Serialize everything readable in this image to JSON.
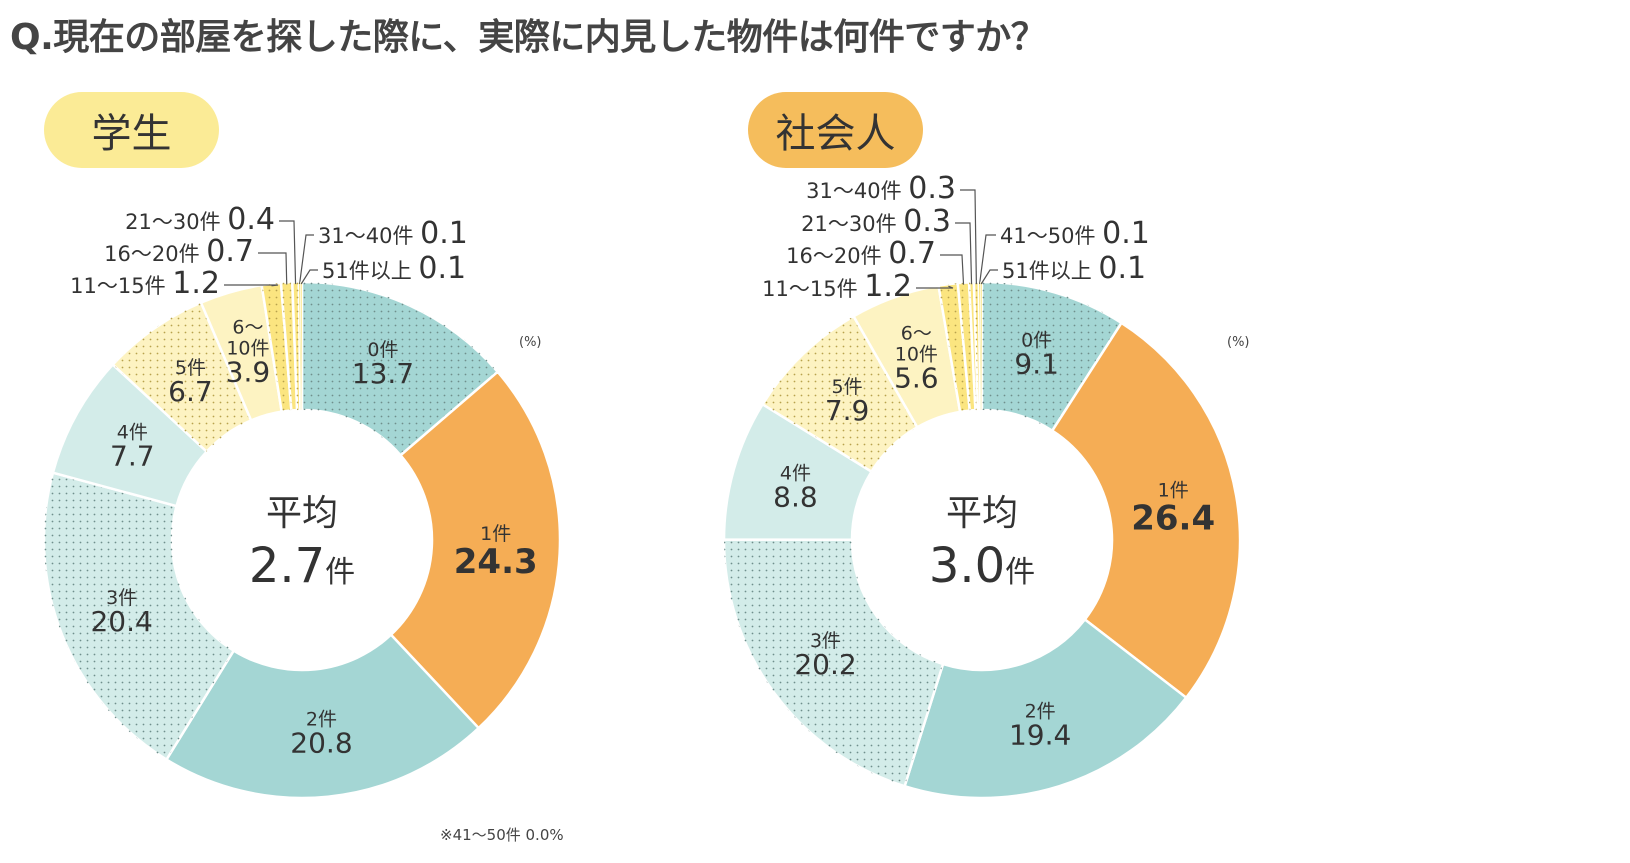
{
  "title": "Q.現在の部屋を探した際に、実際に内見した物件は何件ですか？",
  "colors": {
    "teal": "#a4d6d4",
    "orange": "#f5ad55",
    "light_teal": "#d3ece9",
    "pale_yellow": "#fdf3c2",
    "yellow": "#fbe580",
    "text": "#333333"
  },
  "chart_data": [
    {
      "type": "pie",
      "label": "学生",
      "center_label": "平均",
      "average_value": "2.7",
      "average_unit": "件",
      "unit_note": "(%)",
      "footnote": "※41〜50件 0.0%",
      "categories": [
        "0件",
        "1件",
        "2件",
        "3件",
        "4件",
        "5件",
        "6〜10件",
        "11〜15件",
        "16〜20件",
        "21〜30件",
        "31〜40件",
        "51件以上"
      ],
      "values": [
        13.7,
        24.3,
        20.8,
        20.4,
        7.7,
        6.7,
        3.9,
        1.2,
        0.7,
        0.4,
        0.1,
        0.1
      ]
    },
    {
      "type": "pie",
      "label": "社会人",
      "center_label": "平均",
      "average_value": "3.0",
      "average_unit": "件",
      "unit_note": "(%)",
      "categories": [
        "0件",
        "1件",
        "2件",
        "3件",
        "4件",
        "5件",
        "6〜10件",
        "11〜15件",
        "16〜20件",
        "21〜30件",
        "31〜40件",
        "41〜50件",
        "51件以上"
      ],
      "values": [
        9.1,
        26.4,
        19.4,
        20.2,
        8.8,
        7.9,
        5.6,
        1.2,
        0.7,
        0.3,
        0.3,
        0.1,
        0.1
      ]
    }
  ]
}
